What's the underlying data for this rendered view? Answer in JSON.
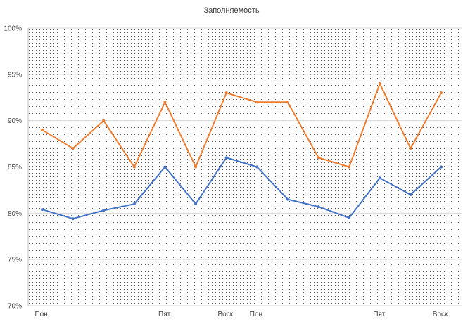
{
  "chart_data": {
    "type": "line",
    "title": "Заполняемость",
    "xlabel": "",
    "ylabel": "",
    "ylim": [
      70,
      100
    ],
    "yticks": [
      "70%",
      "75%",
      "80%",
      "85%",
      "90%",
      "95%",
      "100%"
    ],
    "ytick_values": [
      70,
      75,
      80,
      85,
      90,
      95,
      100
    ],
    "categories": [
      "Пон.",
      "",
      "",
      "",
      "Пят.",
      "",
      "Воск.",
      "Пон.",
      "",
      "",
      "",
      "Пят.",
      "",
      "Воск."
    ],
    "grid": true,
    "legend": "none",
    "series": [
      {
        "color": "#4472c4",
        "values": [
          80.4,
          79.4,
          80.3,
          81.0,
          85.0,
          81.0,
          86.0,
          85.0,
          81.5,
          80.7,
          79.5,
          83.8,
          82.0,
          85.0
        ]
      },
      {
        "color": "#ed7d31",
        "values": [
          89.0,
          87.0,
          90.0,
          85.0,
          92.0,
          85.0,
          93.0,
          92.0,
          92.0,
          86.0,
          85.0,
          94.0,
          87.0,
          93.0
        ]
      }
    ]
  }
}
